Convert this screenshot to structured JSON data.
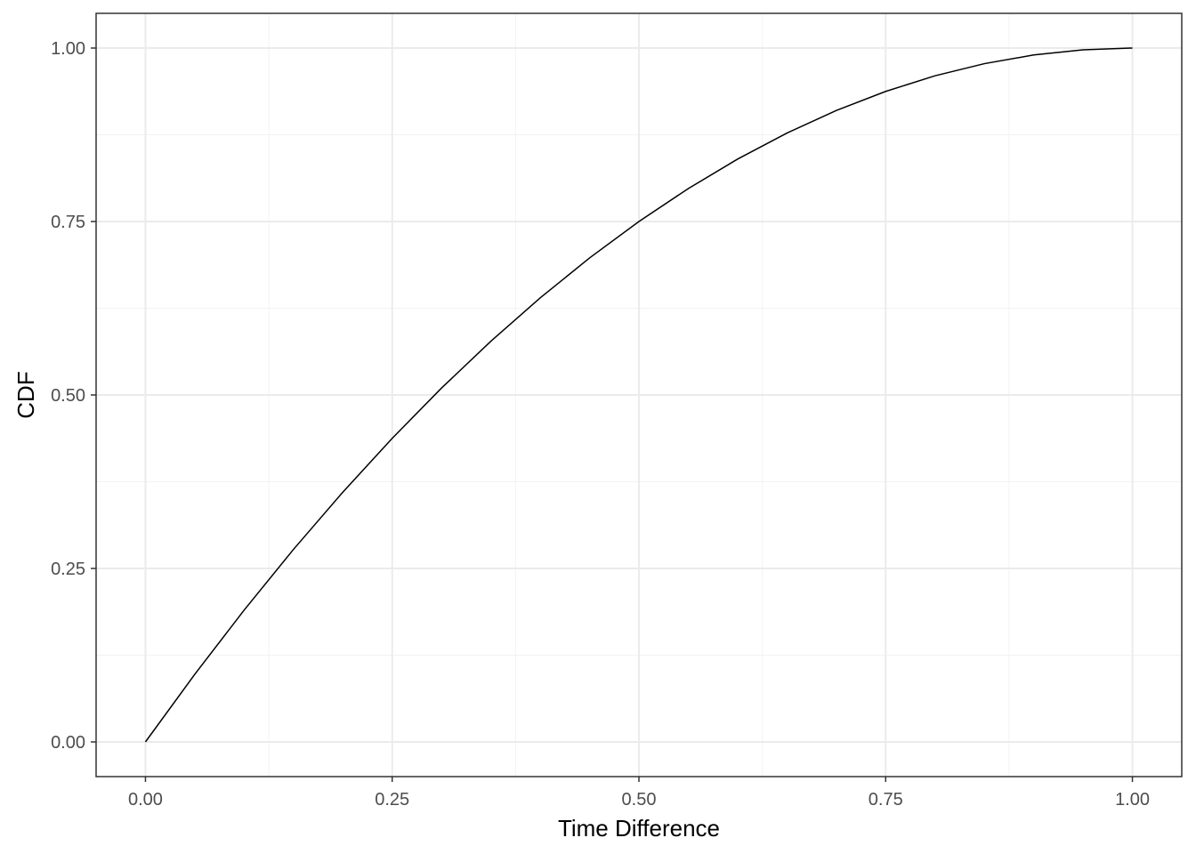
{
  "chart_data": {
    "type": "line",
    "x_label": "Time Difference",
    "y_label": "CDF",
    "x": [
      0,
      0.05,
      0.1,
      0.15,
      0.2,
      0.25,
      0.3,
      0.35,
      0.4,
      0.45,
      0.5,
      0.55,
      0.6,
      0.65,
      0.7,
      0.75,
      0.8,
      0.85,
      0.9,
      0.95,
      1
    ],
    "series": [
      {
        "color": "#000000",
        "values": [
          0,
          0.0975,
          0.19,
          0.2775,
          0.36,
          0.4375,
          0.51,
          0.5775,
          0.64,
          0.6975,
          0.75,
          0.7975,
          0.84,
          0.8775,
          0.91,
          0.9375,
          0.96,
          0.9775,
          0.99,
          0.9975,
          1
        ]
      }
    ],
    "xlim": [
      -0.05,
      1.05
    ],
    "ylim": [
      -0.05,
      1.05
    ],
    "xticks": [
      {
        "value": 0,
        "label": "0.00"
      },
      {
        "value": 0.25,
        "label": "0.25"
      },
      {
        "value": 0.5,
        "label": "0.50"
      },
      {
        "value": 0.75,
        "label": "0.75"
      },
      {
        "value": 1,
        "label": "1.00"
      }
    ],
    "yticks": [
      {
        "value": 0,
        "label": "0.00"
      },
      {
        "value": 0.25,
        "label": "0.25"
      },
      {
        "value": 0.5,
        "label": "0.50"
      },
      {
        "value": 0.75,
        "label": "0.75"
      },
      {
        "value": 1,
        "label": "1.00"
      }
    ],
    "x_minor_ticks": [
      0.125,
      0.375,
      0.625,
      0.875
    ],
    "y_minor_ticks": [
      0.125,
      0.375,
      0.625,
      0.875
    ],
    "grid": true
  }
}
